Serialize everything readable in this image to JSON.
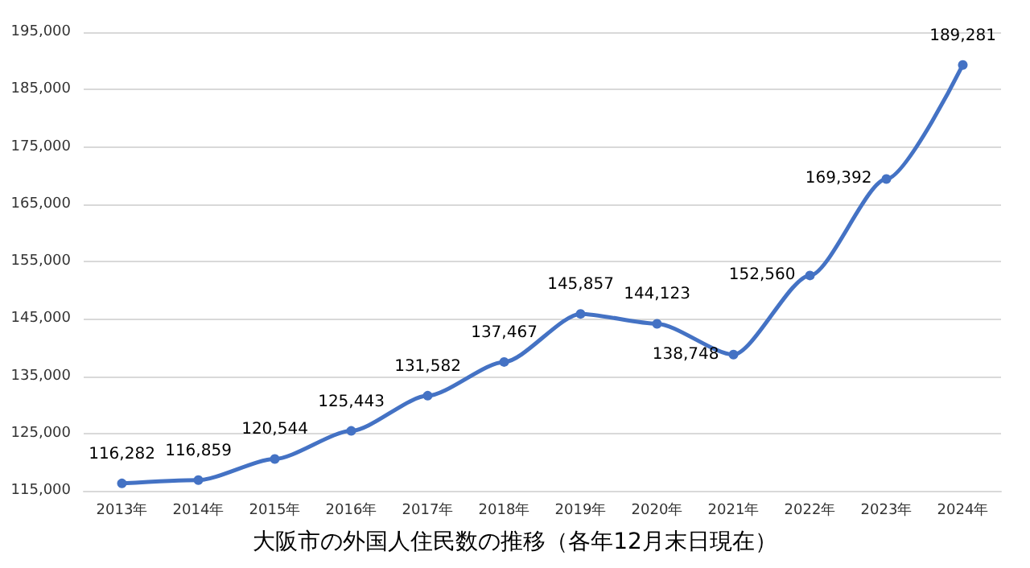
{
  "chart_data": {
    "type": "line",
    "title": "大阪市の外国人住民数の推移（各年12月末日現在）",
    "categories": [
      "2013年",
      "2014年",
      "2015年",
      "2016年",
      "2017年",
      "2018年",
      "2019年",
      "2020年",
      "2021年",
      "2022年",
      "2023年",
      "2024年"
    ],
    "series": [
      {
        "color": "#4472c4",
        "values": [
          116282,
          116859,
          120544,
          125443,
          131582,
          137467,
          145857,
          144123,
          138748,
          152560,
          169392,
          189281
        ],
        "value_labels": [
          "116,282",
          "116,859",
          "120,544",
          "125,443",
          "131,582",
          "137,467",
          "145,857",
          "144,123",
          "138,748",
          "152,560",
          "169,392",
          "189,281"
        ]
      }
    ],
    "ylim": [
      115000,
      195000
    ],
    "yticks": [
      {
        "value": 115000,
        "label": "115,000"
      },
      {
        "value": 125000,
        "label": "125,000"
      },
      {
        "value": 135000,
        "label": "135,000"
      },
      {
        "value": 145000,
        "label": "145,000"
      },
      {
        "value": 155000,
        "label": "155,000"
      },
      {
        "value": 165000,
        "label": "165,000"
      },
      {
        "value": 175000,
        "label": "175,000"
      },
      {
        "value": 185000,
        "label": "185,000"
      },
      {
        "value": 195000,
        "label": "195,000"
      }
    ],
    "grid": "y",
    "marker": "circle",
    "line_style": "solid"
  }
}
